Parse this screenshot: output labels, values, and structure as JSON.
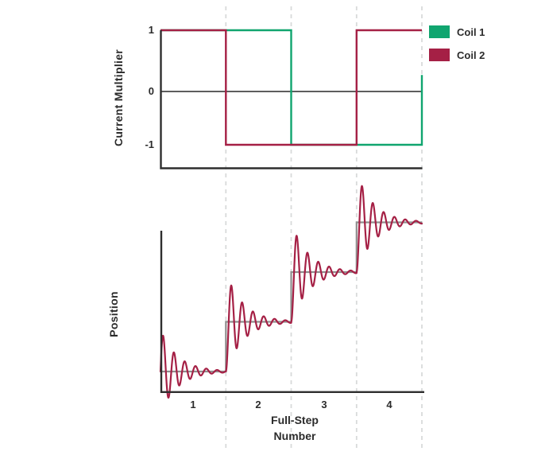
{
  "colors": {
    "axis": "#2e2e2e",
    "zero_line": "#474747",
    "dashed_grid": "#d8dada",
    "text": "#2b2b2b",
    "coil1_green": "#10a56f",
    "coil2_crimson": "#a52045",
    "commanded_gray": "#8f8f8f"
  },
  "legend": {
    "items": [
      {
        "label": "Coil 1",
        "color": "#10a56f"
      },
      {
        "label": "Coil 2",
        "color": "#a52045"
      }
    ]
  },
  "chart_data": [
    {
      "id": "coil-current-waveforms",
      "type": "line",
      "title": "",
      "xlabel": "",
      "ylabel": "Current Multiplier",
      "x_range": [
        0.5,
        4.5
      ],
      "ylim": [
        -1.43,
        1
      ],
      "yticks": [
        1,
        0,
        -1
      ],
      "ytick_labels": [
        "1",
        "0",
        "-1"
      ],
      "zero_line": true,
      "grid_x": [
        1.5,
        2.5,
        3.5,
        4.5
      ],
      "legend_position": "top-right",
      "series": [
        {
          "name": "Coil 1",
          "color": "#10a56f",
          "points": [
            [
              0.5,
              1
            ],
            [
              2.5,
              1
            ],
            [
              2.5,
              -1
            ],
            [
              4.5,
              -1
            ],
            [
              4.5,
              0.27
            ]
          ]
        },
        {
          "name": "Coil 2",
          "color": "#a52045",
          "points": [
            [
              0.5,
              1
            ],
            [
              1.5,
              1
            ],
            [
              1.5,
              -1
            ],
            [
              3.5,
              -1
            ],
            [
              3.5,
              1
            ],
            [
              4.5,
              1
            ]
          ]
        }
      ]
    },
    {
      "id": "rotor-position-step-response",
      "type": "line",
      "title": "",
      "xlabel": "Full-Step Number",
      "xlabel_lines": [
        "Full-Step",
        "Number"
      ],
      "ylabel": "Position",
      "x_range": [
        0.5,
        4.5
      ],
      "xticks": [
        1,
        2,
        3,
        4
      ],
      "xtick_labels": [
        "1",
        "2",
        "3",
        "4"
      ],
      "grid_x": [
        1.5,
        2.5,
        3.5,
        4.5
      ],
      "steps": {
        "times": [
          0.5,
          1.5,
          2.5,
          3.5
        ],
        "levels": [
          1,
          2,
          3,
          4
        ],
        "comment": "gray commanded staircase; one position unit per full step"
      },
      "ringing": {
        "omega_rad_per_step": 38,
        "decay_per_step": 3.8,
        "overshoot_fraction": 0.72,
        "initial_amplitude_fraction": 0.84
      },
      "series_colors": {
        "commanded": "#8f8f8f",
        "actual": "#a52045"
      }
    }
  ]
}
